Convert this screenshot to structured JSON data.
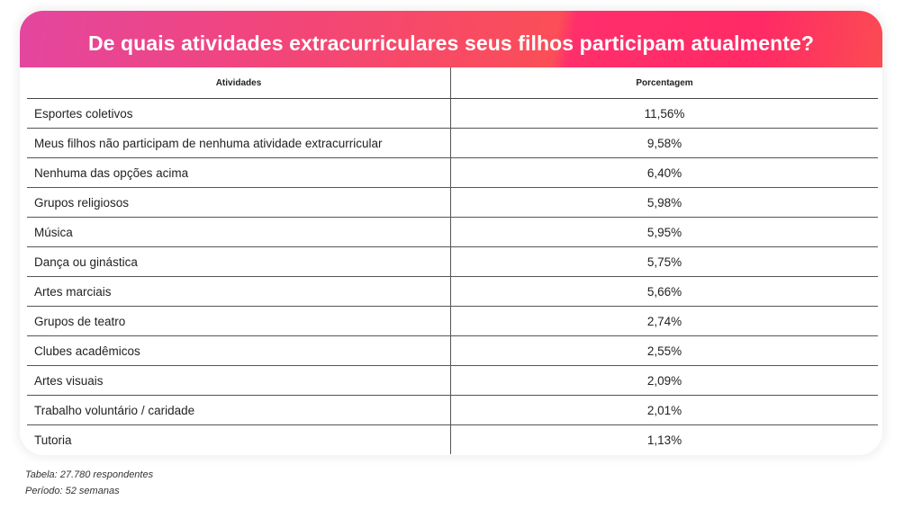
{
  "chart_data": {
    "type": "table",
    "title": "De quais atividades extracurriculares seus filhos participam atualmente?",
    "columns": [
      "Atividades",
      "Porcentagem"
    ],
    "rows": [
      [
        "Esportes coletivos",
        "11,56%"
      ],
      [
        "Meus filhos não participam de nenhuma atividade extracurricular",
        "9,58%"
      ],
      [
        "Nenhuma das opções acima",
        "6,40%"
      ],
      [
        "Grupos religiosos",
        "5,98%"
      ],
      [
        "Música",
        "5,95%"
      ],
      [
        "Dança ou ginástica",
        "5,75%"
      ],
      [
        "Artes marciais",
        "5,66%"
      ],
      [
        "Grupos de teatro",
        "2,74%"
      ],
      [
        "Clubes acadêmicos",
        "2,55%"
      ],
      [
        "Artes visuais",
        "2,09%"
      ],
      [
        "Trabalho voluntário / caridade",
        "2,01%"
      ],
      [
        "Tutoria",
        "1,13%"
      ]
    ]
  },
  "footer": {
    "respondents": "Tabela: 27.780  respondentes",
    "period": "Período: 52 semanas"
  },
  "colors": {
    "banner_start": "#e4469f",
    "banner_end": "#ff2a66"
  }
}
